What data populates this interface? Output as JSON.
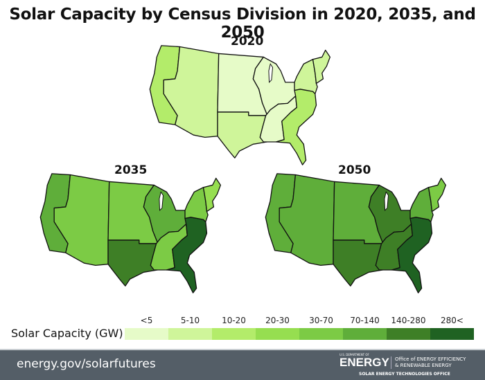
{
  "title": "Solar Capacity by Census Division in 2020, 2035, and 2050",
  "legend": {
    "title": "Solar Capacity (GW)",
    "bins": [
      {
        "label": "<5",
        "color": "#e6fbc8"
      },
      {
        "label": "5-10",
        "color": "#cff59a"
      },
      {
        "label": "10-20",
        "color": "#b3ec6a"
      },
      {
        "label": "20-30",
        "color": "#96de50"
      },
      {
        "label": "30-70",
        "color": "#7ccb45"
      },
      {
        "label": "70-140",
        "color": "#5fae3a"
      },
      {
        "label": "140-280",
        "color": "#3e7f26"
      },
      {
        "label": "280<",
        "color": "#1f6222"
      }
    ]
  },
  "maps": [
    {
      "year": "2020",
      "divisions": {
        "pacific": "10-20",
        "mountain": "5-10",
        "west_north_central": "<5",
        "west_south_central": "5-10",
        "east_north_central": "<5",
        "east_south_central": "<5",
        "south_atlantic": "10-20",
        "middle_atlantic": "5-10",
        "new_england": "5-10"
      }
    },
    {
      "year": "2035",
      "divisions": {
        "pacific": "70-140",
        "mountain": "30-70",
        "west_north_central": "30-70",
        "west_south_central": "140-280",
        "east_north_central": "70-140",
        "east_south_central": "30-70",
        "south_atlantic": "280<",
        "middle_atlantic": "30-70",
        "new_england": "20-30"
      }
    },
    {
      "year": "2050",
      "divisions": {
        "pacific": "70-140",
        "mountain": "70-140",
        "west_north_central": "70-140",
        "west_south_central": "140-280",
        "east_north_central": "140-280",
        "east_south_central": "140-280",
        "south_atlantic": "280<",
        "middle_atlantic": "70-140",
        "new_england": "30-70"
      }
    }
  ],
  "footer": {
    "url": "energy.gov/solarfutures",
    "doe_small": "U.S. DEPARTMENT OF",
    "doe_big": "ENERGY",
    "office_line1": "Office of ENERGY EFFICIENCY",
    "office_line2": "& RENEWABLE ENERGY",
    "seto": "SOLAR ENERGY TECHNOLOGIES OFFICE",
    "background": "#545e67"
  }
}
